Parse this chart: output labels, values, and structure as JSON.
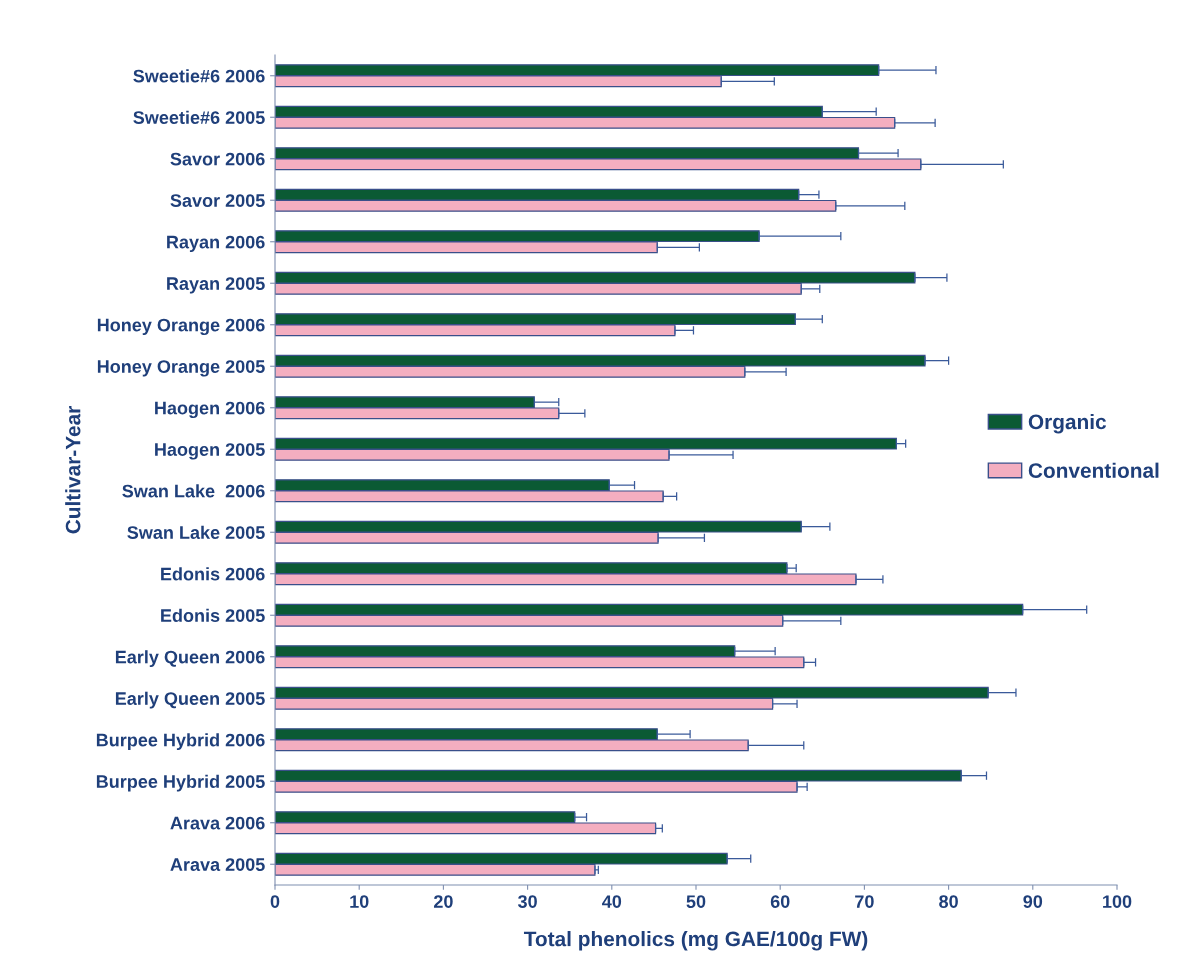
{
  "chart_data": {
    "type": "bar",
    "orientation": "horizontal",
    "xlabel": "Total phenolics (mg GAE/100g FW)",
    "ylabel": "Cultivar-Year",
    "categories": [
      "Sweetie#6 2006",
      "Sweetie#6 2005",
      "Savor 2006",
      "Savor 2005",
      "Rayan 2006",
      "Rayan 2005",
      "Honey Orange 2006",
      "Honey Orange 2005",
      "Haogen 2006",
      "Haogen 2005",
      "Swan Lake  2006",
      "Swan Lake 2005",
      "Edonis 2006",
      "Edonis 2005",
      "Early Queen 2006",
      "Early Queen 2005",
      "Burpee Hybrid 2006",
      "Burpee Hybrid 2005",
      "Arava 2006",
      "Arava 2005"
    ],
    "series": [
      {
        "name": "Organic",
        "color": "#0b5a34",
        "values": [
          71.7,
          65,
          69.3,
          62.2,
          57.5,
          76,
          61.8,
          77.2,
          30.8,
          73.8,
          39.7,
          62.5,
          60.8,
          88.8,
          54.6,
          84.7,
          45.4,
          81.5,
          35.6,
          53.7
        ],
        "errors": [
          [
            71.7,
            78.5
          ],
          [
            65,
            71.4
          ],
          [
            69.3,
            74
          ],
          [
            62.2,
            64.6
          ],
          [
            57.5,
            67.2
          ],
          [
            76,
            79.8
          ],
          [
            61.8,
            65
          ],
          [
            77.2,
            80
          ],
          [
            30.8,
            33.7
          ],
          [
            73.8,
            74.9
          ],
          [
            39.7,
            42.7
          ],
          [
            62.5,
            65.9
          ],
          [
            60.8,
            61.9
          ],
          [
            88.8,
            96.4
          ],
          [
            54.6,
            59.4
          ],
          [
            84.7,
            88
          ],
          [
            45.4,
            49.3
          ],
          [
            81.5,
            84.5
          ],
          [
            35.6,
            37
          ],
          [
            53.7,
            56.5
          ]
        ]
      },
      {
        "name": "Conventional",
        "color": "#f4aec0",
        "values": [
          53,
          73.6,
          76.7,
          66.6,
          45.4,
          62.5,
          47.5,
          55.8,
          33.7,
          46.8,
          46.1,
          45.5,
          69,
          60.3,
          62.8,
          59.1,
          56.2,
          62,
          45.2,
          38
        ],
        "errors": [
          [
            53,
            59.3
          ],
          [
            73.6,
            78.4
          ],
          [
            76.7,
            86.5
          ],
          [
            66.6,
            74.8
          ],
          [
            45.4,
            50.4
          ],
          [
            62.5,
            64.7
          ],
          [
            47.5,
            49.7
          ],
          [
            55.8,
            60.7
          ],
          [
            33.7,
            36.8
          ],
          [
            46.8,
            54.4
          ],
          [
            46.1,
            47.7
          ],
          [
            45.5,
            51
          ],
          [
            69,
            72.2
          ],
          [
            60.3,
            67.2
          ],
          [
            62.8,
            64.2
          ],
          [
            59.1,
            62
          ],
          [
            56.2,
            62.8
          ],
          [
            62,
            63.2
          ],
          [
            45.2,
            46
          ],
          [
            38,
            38.4
          ]
        ]
      }
    ],
    "xlim": [
      0,
      100
    ],
    "xticks": [
      0,
      10,
      20,
      30,
      40,
      50,
      60,
      70,
      80,
      90,
      100
    ],
    "grid": false,
    "legend": "right"
  }
}
